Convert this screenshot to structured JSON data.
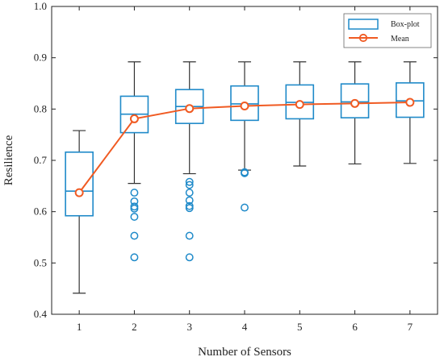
{
  "chart_data": {
    "type": "box",
    "xlabel": "Number of Sensors",
    "ylabel": "Resilience",
    "ylim": [
      0.4,
      1.0
    ],
    "yticks": [
      "0.4",
      "0.5",
      "0.6",
      "0.7",
      "0.8",
      "0.9",
      "1.0"
    ],
    "categories": [
      "1",
      "2",
      "3",
      "4",
      "5",
      "6",
      "7"
    ],
    "legend": {
      "position": "top-right",
      "box_label": "Box-plot",
      "mean_label": "Mean"
    },
    "colors": {
      "box": "#1f8ac9",
      "mean": "#f05a22",
      "whisker": "#333333"
    },
    "boxes": [
      {
        "x": "1",
        "min": 0.441,
        "q1": 0.592,
        "median": 0.64,
        "q3": 0.716,
        "max": 0.758,
        "outliers": []
      },
      {
        "x": "2",
        "min": 0.655,
        "q1": 0.754,
        "median": 0.79,
        "q3": 0.825,
        "max": 0.892,
        "outliers": [
          0.637,
          0.62,
          0.61,
          0.606,
          0.59,
          0.553,
          0.511
        ]
      },
      {
        "x": "3",
        "min": 0.674,
        "q1": 0.772,
        "median": 0.805,
        "q3": 0.838,
        "max": 0.892,
        "outliers": [
          0.658,
          0.652,
          0.637,
          0.622,
          0.611,
          0.607,
          0.553,
          0.511
        ]
      },
      {
        "x": "4",
        "min": 0.681,
        "q1": 0.778,
        "median": 0.81,
        "q3": 0.845,
        "max": 0.892,
        "outliers": [
          0.677,
          0.675,
          0.608
        ]
      },
      {
        "x": "5",
        "min": 0.689,
        "q1": 0.781,
        "median": 0.813,
        "q3": 0.847,
        "max": 0.892,
        "outliers": []
      },
      {
        "x": "6",
        "min": 0.693,
        "q1": 0.783,
        "median": 0.814,
        "q3": 0.849,
        "max": 0.892,
        "outliers": []
      },
      {
        "x": "7",
        "min": 0.694,
        "q1": 0.784,
        "median": 0.816,
        "q3": 0.851,
        "max": 0.892,
        "outliers": []
      }
    ],
    "series": [
      {
        "name": "Mean",
        "values": [
          0.637,
          0.781,
          0.801,
          0.806,
          0.809,
          0.811,
          0.813
        ]
      }
    ]
  }
}
